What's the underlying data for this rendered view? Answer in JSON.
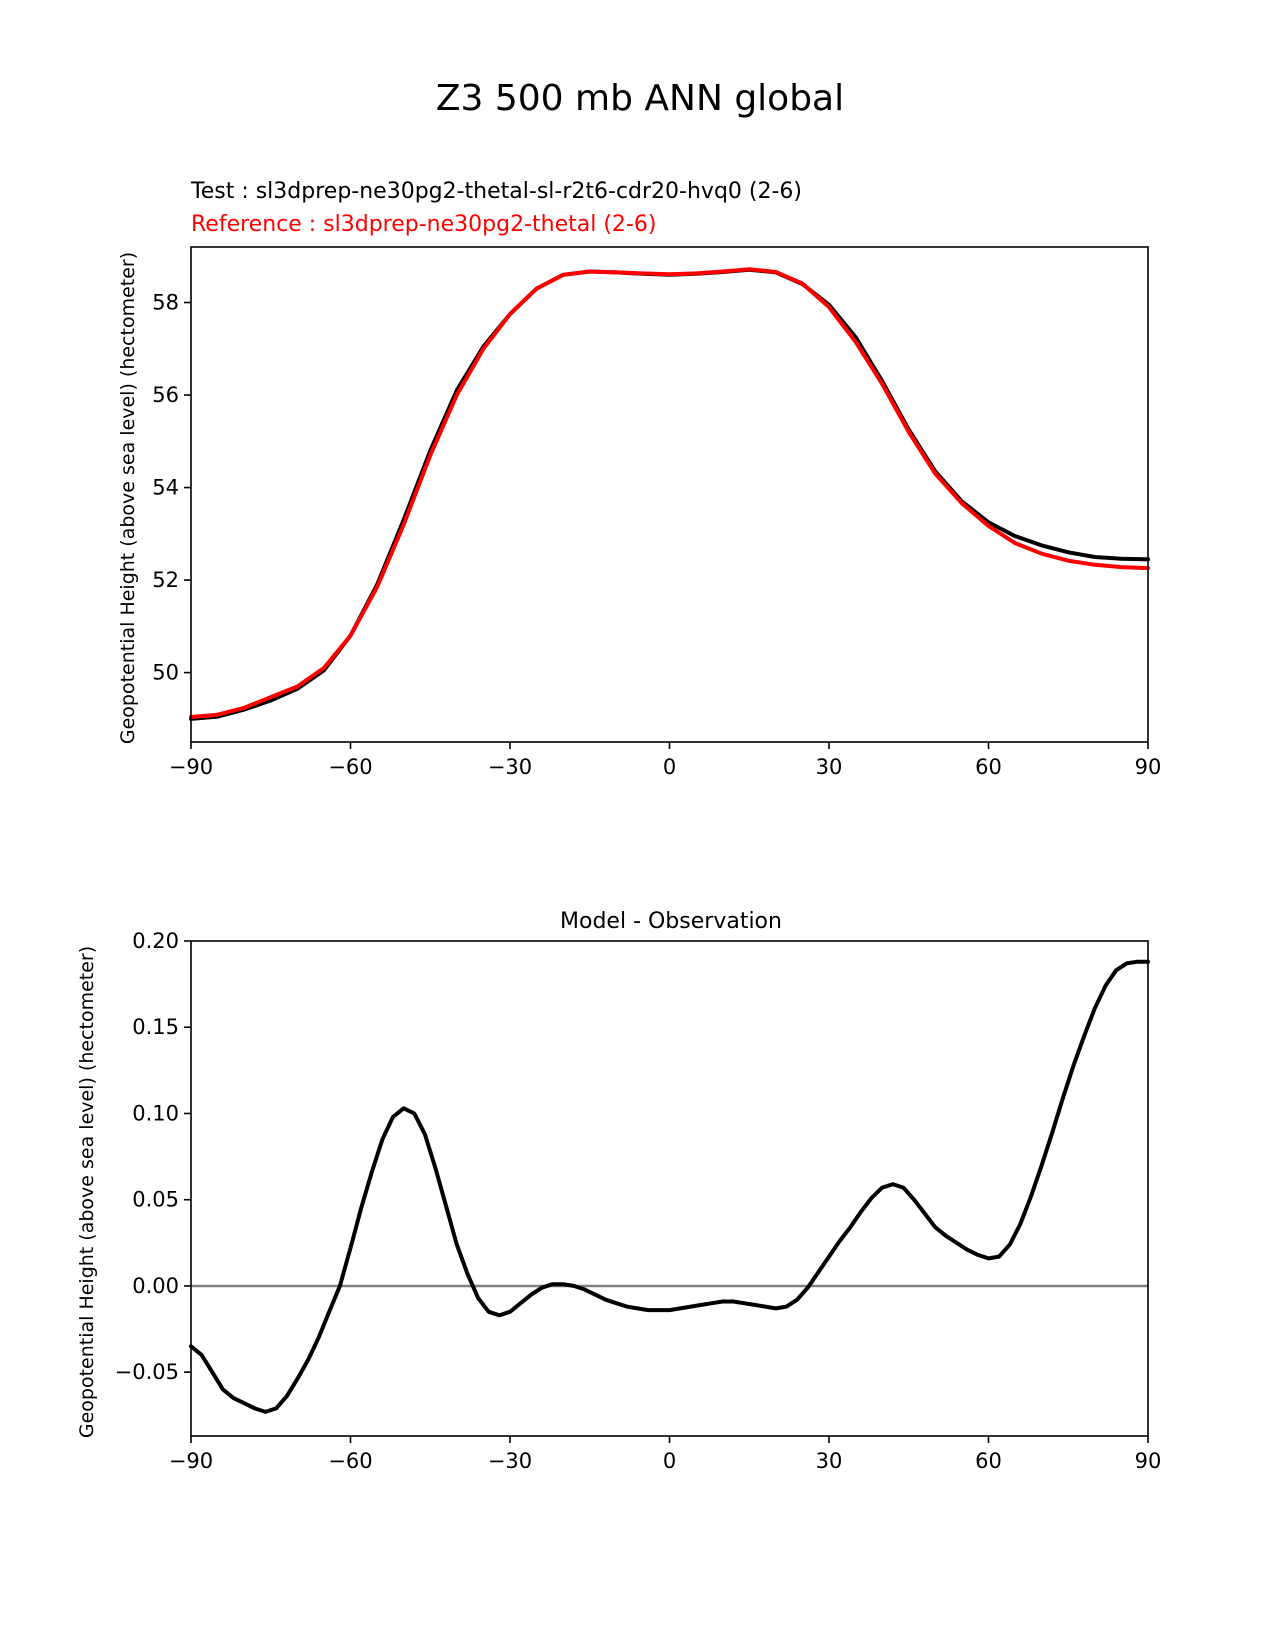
{
  "figure": {
    "title": "Z3 500 mb ANN global"
  },
  "colors": {
    "test": "#000000",
    "reference": "#ff0000",
    "zero_line": "#808080"
  },
  "chart_data": [
    {
      "type": "line",
      "title": "",
      "test_label": "Test : sl3dprep-ne30pg2-thetal-sl-r2t6-cdr20-hvq0 (2-6)",
      "reference_label": "Reference : sl3dprep-ne30pg2-thetal (2-6)",
      "xlabel": "",
      "ylabel": "Geopotential Height (above sea level) (hectometer)",
      "xlim": [
        -90,
        90
      ],
      "ylim": [
        48.5,
        59.2
      ],
      "xticks": [
        -90,
        -60,
        -30,
        0,
        30,
        60,
        90
      ],
      "xtick_labels": [
        "−90",
        "−60",
        "−30",
        "0",
        "30",
        "60",
        "90"
      ],
      "yticks": [
        50,
        52,
        54,
        56,
        58
      ],
      "ytick_labels": [
        "50",
        "52",
        "54",
        "56",
        "58"
      ],
      "x": [
        -90,
        -85,
        -80,
        -75,
        -70,
        -65,
        -60,
        -55,
        -50,
        -45,
        -40,
        -35,
        -30,
        -25,
        -20,
        -15,
        -10,
        -5,
        0,
        5,
        10,
        15,
        20,
        25,
        30,
        35,
        40,
        45,
        50,
        55,
        60,
        65,
        70,
        75,
        80,
        85,
        90
      ],
      "series": [
        {
          "name": "Test",
          "values": [
            49.0,
            49.05,
            49.2,
            49.4,
            49.65,
            50.05,
            50.8,
            51.9,
            53.3,
            54.8,
            56.1,
            57.05,
            57.75,
            58.3,
            58.6,
            58.67,
            58.65,
            58.62,
            58.6,
            58.62,
            58.66,
            58.71,
            58.65,
            58.4,
            57.95,
            57.25,
            56.3,
            55.25,
            54.35,
            53.7,
            53.25,
            52.95,
            52.75,
            52.6,
            52.5,
            52.46,
            52.45
          ]
        },
        {
          "name": "Reference",
          "values": [
            49.04,
            49.09,
            49.24,
            49.47,
            49.7,
            50.1,
            50.8,
            51.85,
            53.2,
            54.7,
            56.0,
            57.0,
            57.75,
            58.3,
            58.6,
            58.67,
            58.65,
            58.63,
            58.61,
            58.63,
            58.67,
            58.72,
            58.66,
            58.41,
            57.9,
            57.15,
            56.24,
            55.2,
            54.3,
            53.66,
            53.17,
            52.8,
            52.57,
            52.42,
            52.33,
            52.28,
            52.26
          ]
        }
      ]
    },
    {
      "type": "line",
      "title": "Model - Observation",
      "xlabel": "",
      "ylabel": "Geopotential Height (above sea level) (hectometer)",
      "xlim": [
        -90,
        90
      ],
      "ylim": [
        -0.087,
        0.2
      ],
      "xticks": [
        -90,
        -60,
        -30,
        0,
        30,
        60,
        90
      ],
      "xtick_labels": [
        "−90",
        "−60",
        "−30",
        "0",
        "30",
        "60",
        "90"
      ],
      "yticks": [
        -0.05,
        0.0,
        0.05,
        0.1,
        0.15,
        0.2
      ],
      "ytick_labels": [
        "−0.05",
        "0.00",
        "0.05",
        "0.10",
        "0.15",
        "0.20"
      ],
      "zero_line": 0.0,
      "x": [
        -90,
        -88,
        -86,
        -84,
        -82,
        -80,
        -78,
        -76,
        -74,
        -72,
        -70,
        -68,
        -66,
        -64,
        -62,
        -60,
        -58,
        -56,
        -54,
        -52,
        -50,
        -48,
        -46,
        -44,
        -42,
        -40,
        -38,
        -36,
        -34,
        -32,
        -30,
        -28,
        -26,
        -24,
        -22,
        -20,
        -18,
        -16,
        -14,
        -12,
        -10,
        -8,
        -6,
        -4,
        -2,
        0,
        2,
        4,
        6,
        8,
        10,
        12,
        14,
        16,
        18,
        20,
        22,
        24,
        26,
        28,
        30,
        32,
        34,
        36,
        38,
        40,
        42,
        44,
        46,
        48,
        50,
        52,
        54,
        56,
        58,
        60,
        62,
        64,
        66,
        68,
        70,
        72,
        74,
        76,
        78,
        80,
        82,
        84,
        86,
        88,
        90
      ],
      "series": [
        {
          "name": "Model - Observation",
          "values": [
            -0.035,
            -0.04,
            -0.05,
            -0.06,
            -0.065,
            -0.068,
            -0.071,
            -0.073,
            -0.071,
            -0.064,
            -0.054,
            -0.043,
            -0.03,
            -0.015,
            0.0,
            0.022,
            0.045,
            0.066,
            0.085,
            0.098,
            0.103,
            0.1,
            0.088,
            0.068,
            0.046,
            0.024,
            0.007,
            -0.007,
            -0.015,
            -0.017,
            -0.015,
            -0.01,
            -0.005,
            -0.001,
            0.001,
            0.001,
            0.0,
            -0.002,
            -0.005,
            -0.008,
            -0.01,
            -0.012,
            -0.013,
            -0.014,
            -0.014,
            -0.014,
            -0.013,
            -0.012,
            -0.011,
            -0.01,
            -0.009,
            -0.009,
            -0.01,
            -0.011,
            -0.012,
            -0.013,
            -0.012,
            -0.008,
            -0.001,
            0.008,
            0.017,
            0.026,
            0.034,
            0.043,
            0.051,
            0.057,
            0.059,
            0.057,
            0.05,
            0.042,
            0.034,
            0.029,
            0.025,
            0.021,
            0.018,
            0.016,
            0.017,
            0.024,
            0.036,
            0.052,
            0.07,
            0.089,
            0.109,
            0.128,
            0.145,
            0.161,
            0.174,
            0.183,
            0.187,
            0.188,
            0.188
          ]
        }
      ]
    }
  ]
}
